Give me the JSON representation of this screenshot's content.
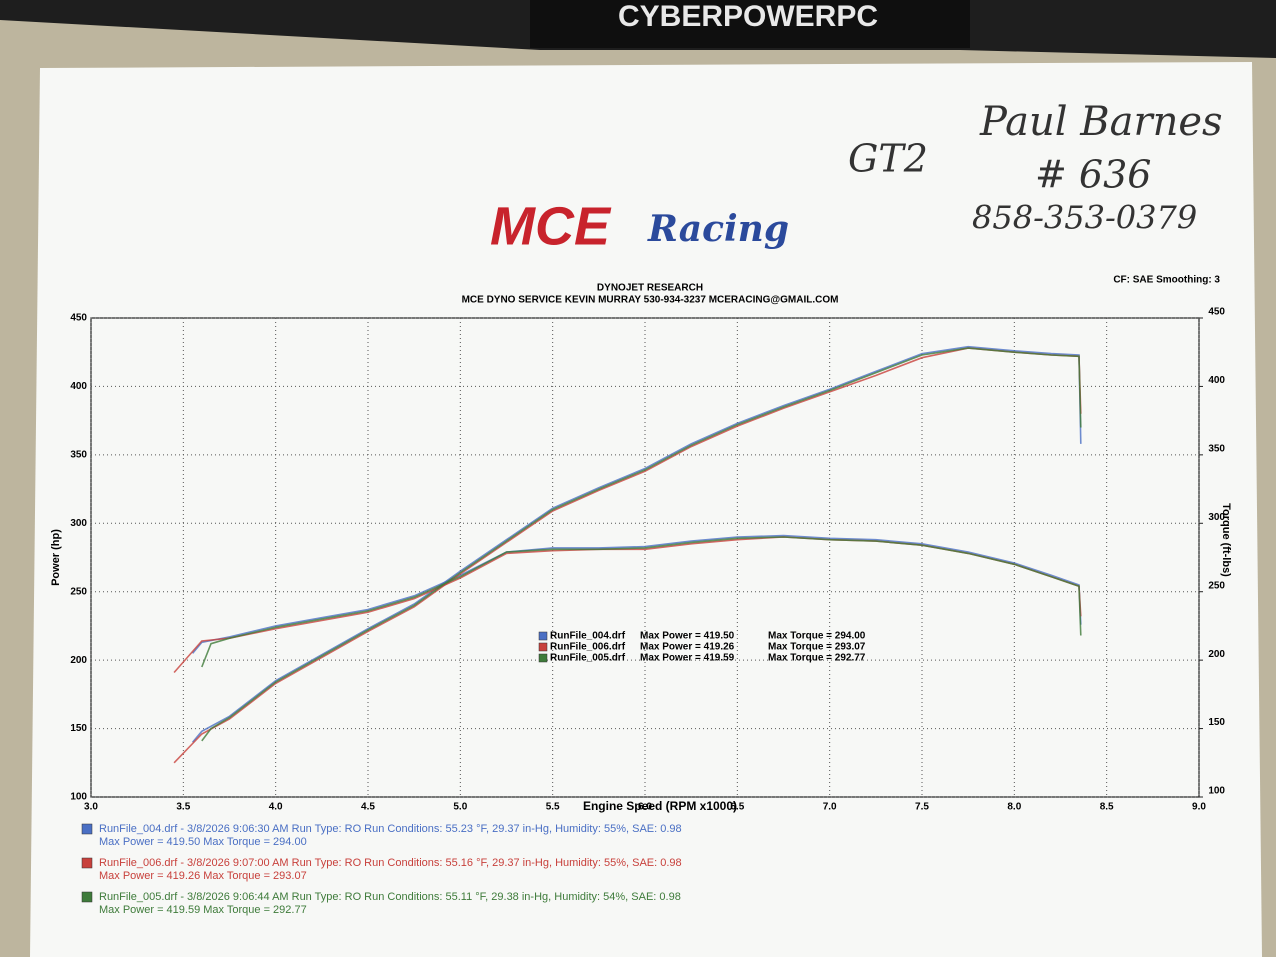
{
  "monitor_brand": "CYBERPOWERPC",
  "handwritten": [
    "GT2",
    "Paul Barnes",
    "# 636",
    "858-353-0379"
  ],
  "logo": {
    "main": "MCE",
    "sub": "Racing"
  },
  "header": {
    "line1": "DYNOJET RESEARCH",
    "line2": "MCE DYNO SERVICE KEVIN MURRAY 530-934-3237 MCERACING@GMAIL.COM",
    "settings": "CF: SAE Smoothing: 3"
  },
  "chart_data": {
    "type": "line",
    "x_label": "Engine Speed (RPM x1000)",
    "y_label": "Power (hp)",
    "y2_label": "Torque (ft-lbs)",
    "xlim": [
      3,
      9
    ],
    "xticks": [
      {
        "value": 3,
        "label": "3.0"
      },
      {
        "value": 3.5,
        "label": "3.5"
      },
      {
        "value": 4,
        "label": "4.0"
      },
      {
        "value": 4.5,
        "label": "4.5"
      },
      {
        "value": 5,
        "label": "5.0"
      },
      {
        "value": 5.5,
        "label": "5.5"
      },
      {
        "value": 6,
        "label": "6.0"
      },
      {
        "value": 6.5,
        "label": "6.5"
      },
      {
        "value": 7,
        "label": "7.0"
      },
      {
        "value": 7.5,
        "label": "7.5"
      },
      {
        "value": 8,
        "label": "8.0"
      },
      {
        "value": 8.5,
        "label": "8.5"
      },
      {
        "value": 9,
        "label": "9.0"
      }
    ],
    "ylim": [
      100,
      450
    ],
    "yticks": [
      100,
      150,
      200,
      250,
      300,
      350,
      400,
      450
    ],
    "y2lim": [
      100,
      450
    ],
    "y2ticks": [
      100,
      150,
      200,
      250,
      300,
      350,
      400,
      450
    ],
    "grid": true,
    "series": [
      {
        "name": "RunFile_004.drf",
        "color": "#4a6fc4",
        "max_power": "Max Power = 419.50",
        "max_torque": "Max Torque = 294.00",
        "x": [
          3.55,
          3.6,
          3.75,
          4.0,
          4.25,
          4.5,
          4.75,
          5.0,
          5.25,
          5.5,
          5.75,
          6.0,
          6.25,
          6.5,
          6.75,
          7.0,
          7.25,
          7.5,
          7.75,
          8.0,
          8.2,
          8.35,
          8.36
        ],
        "values": [
          140,
          148,
          159,
          185,
          204,
          223,
          241,
          265,
          288,
          311,
          326,
          340,
          358,
          373,
          386,
          398,
          411,
          424,
          429,
          426,
          424,
          423,
          358
        ],
        "y2_values": [
          205,
          213,
          217,
          225,
          231,
          237,
          247,
          262,
          279,
          282,
          282,
          283,
          287,
          290,
          291,
          289,
          288,
          285,
          279,
          271,
          262,
          255,
          226
        ]
      },
      {
        "name": "RunFile_006.drf",
        "color": "#c8413c",
        "max_power": "Max Power = 419.26",
        "max_torque": "Max Torque = 293.07",
        "x": [
          3.45,
          3.6,
          3.75,
          4.0,
          4.25,
          4.5,
          4.75,
          5.0,
          5.25,
          5.5,
          5.75,
          6.0,
          6.25,
          6.5,
          6.75,
          7.0,
          7.25,
          7.5,
          7.75,
          8.0,
          8.2,
          8.35,
          8.36
        ],
        "values": [
          125,
          146,
          157,
          183,
          202,
          221,
          239,
          263,
          286,
          309,
          324,
          338,
          356,
          371,
          384,
          396,
          408,
          421,
          428,
          425,
          423,
          422,
          380
        ],
        "y2_values": [
          191,
          214,
          216,
          223,
          229,
          235,
          245,
          260,
          278,
          280,
          281,
          281,
          285,
          288,
          290,
          288,
          287,
          284,
          278,
          270,
          261,
          254,
          232
        ]
      },
      {
        "name": "RunFile_005.drf",
        "color": "#3e7b3a",
        "max_power": "Max Power = 419.59",
        "max_torque": "Max Torque = 292.77",
        "x": [
          3.6,
          3.65,
          3.75,
          4.0,
          4.25,
          4.5,
          4.75,
          5.0,
          5.25,
          5.5,
          5.75,
          6.0,
          6.25,
          6.5,
          6.75,
          7.0,
          7.25,
          7.5,
          7.75,
          8.0,
          8.2,
          8.35,
          8.36
        ],
        "values": [
          141,
          150,
          158,
          184,
          203,
          222,
          240,
          264,
          287,
          310,
          325,
          339,
          357,
          372,
          385,
          397,
          410,
          423,
          428,
          425,
          423,
          422,
          370
        ],
        "y2_values": [
          195,
          212,
          216,
          224,
          230,
          236,
          246,
          261,
          279,
          281,
          281,
          282,
          286,
          289,
          290,
          288,
          287,
          284,
          278,
          270,
          261,
          254,
          218
        ]
      }
    ]
  },
  "run_info": [
    {
      "line1": "RunFile_004.drf - 3/8/2026 9:06:30 AM  Run Type: RO  Run Conditions: 55.23 °F, 29.37 in-Hg,  Humidity:  55%, SAE: 0.98",
      "line2": "Max Power = 419.50  Max Torque = 294.00"
    },
    {
      "line1": "RunFile_006.drf - 3/8/2026 9:07:00 AM  Run Type: RO  Run Conditions: 55.16 °F, 29.37 in-Hg,  Humidity:  55%, SAE: 0.98",
      "line2": "Max Power = 419.26  Max Torque = 293.07"
    },
    {
      "line1": "RunFile_005.drf - 3/8/2026 9:06:44 AM  Run Type: RO  Run Conditions: 55.11 °F, 29.38 in-Hg,  Humidity:  54%, SAE: 0.98",
      "line2": "Max Power = 419.59  Max Torque = 292.77"
    }
  ]
}
